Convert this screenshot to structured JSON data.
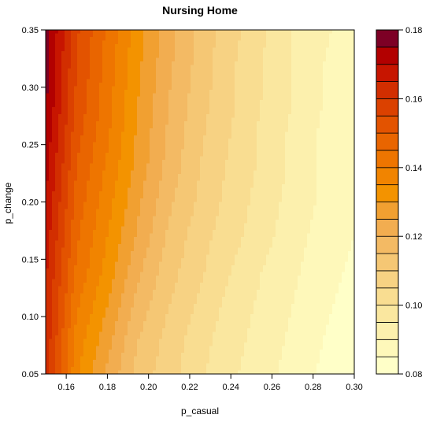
{
  "chart_data": {
    "type": "heatmap",
    "subtype": "filled-contour",
    "title": "Nursing Home",
    "xlabel": "p_casual",
    "ylabel": "p_change",
    "xlim": [
      0.15,
      0.3
    ],
    "ylim": [
      0.05,
      0.35
    ],
    "x_ticks": [
      "0.16",
      "0.18",
      "0.20",
      "0.22",
      "0.24",
      "0.26",
      "0.28",
      "0.30"
    ],
    "y_ticks": [
      "0.05",
      "0.10",
      "0.15",
      "0.20",
      "0.25",
      "0.30",
      "0.35"
    ],
    "x": [
      0.15,
      0.165,
      0.18,
      0.195,
      0.21,
      0.225,
      0.24,
      0.255,
      0.27,
      0.285,
      0.3
    ],
    "y": [
      0.05,
      0.08,
      0.11,
      0.14,
      0.17,
      0.2,
      0.23,
      0.26,
      0.29,
      0.32,
      0.35
    ],
    "z": [
      [
        0.163,
        0.136,
        0.124,
        0.113,
        0.107,
        0.101,
        0.096,
        0.092,
        0.088,
        0.084,
        0.081
      ],
      [
        0.164,
        0.138,
        0.127,
        0.115,
        0.108,
        0.102,
        0.097,
        0.093,
        0.089,
        0.085,
        0.082
      ],
      [
        0.165,
        0.141,
        0.13,
        0.118,
        0.11,
        0.104,
        0.098,
        0.094,
        0.09,
        0.086,
        0.083
      ],
      [
        0.166,
        0.144,
        0.133,
        0.121,
        0.112,
        0.106,
        0.1,
        0.095,
        0.091,
        0.087,
        0.084
      ],
      [
        0.168,
        0.146,
        0.135,
        0.124,
        0.114,
        0.107,
        0.102,
        0.097,
        0.092,
        0.088,
        0.085
      ],
      [
        0.17,
        0.148,
        0.137,
        0.126,
        0.116,
        0.109,
        0.103,
        0.098,
        0.093,
        0.089,
        0.086
      ],
      [
        0.172,
        0.15,
        0.139,
        0.128,
        0.118,
        0.11,
        0.104,
        0.099,
        0.094,
        0.089,
        0.085
      ],
      [
        0.174,
        0.152,
        0.141,
        0.129,
        0.119,
        0.111,
        0.105,
        0.099,
        0.094,
        0.089,
        0.085
      ],
      [
        0.176,
        0.154,
        0.142,
        0.13,
        0.12,
        0.112,
        0.106,
        0.1,
        0.095,
        0.09,
        0.086
      ],
      [
        0.177,
        0.155,
        0.143,
        0.131,
        0.121,
        0.113,
        0.106,
        0.1,
        0.095,
        0.09,
        0.086
      ],
      [
        0.178,
        0.156,
        0.144,
        0.132,
        0.122,
        0.113,
        0.107,
        0.101,
        0.095,
        0.091,
        0.087
      ]
    ],
    "levels": [
      0.08,
      0.085,
      0.09,
      0.095,
      0.1,
      0.105,
      0.11,
      0.115,
      0.12,
      0.125,
      0.13,
      0.135,
      0.14,
      0.145,
      0.15,
      0.155,
      0.16,
      0.165,
      0.17,
      0.175,
      0.18
    ],
    "colorbar_ticks": [
      "0.08",
      "0.10",
      "0.12",
      "0.14",
      "0.16",
      "0.18"
    ],
    "colors": [
      "#FFFFC8",
      "#FEF8BA",
      "#FCF0AD",
      "#FAE79F",
      "#F9DD91",
      "#F7D283",
      "#F5C774",
      "#F3BA64",
      "#F2AD50",
      "#F1A031",
      "#F39300",
      "#F18400",
      "#EE7500",
      "#E96500",
      "#E35300",
      "#DB4100",
      "#D22E00",
      "#C71500",
      "#B20000",
      "#7D0025"
    ],
    "legend_position": "right"
  }
}
